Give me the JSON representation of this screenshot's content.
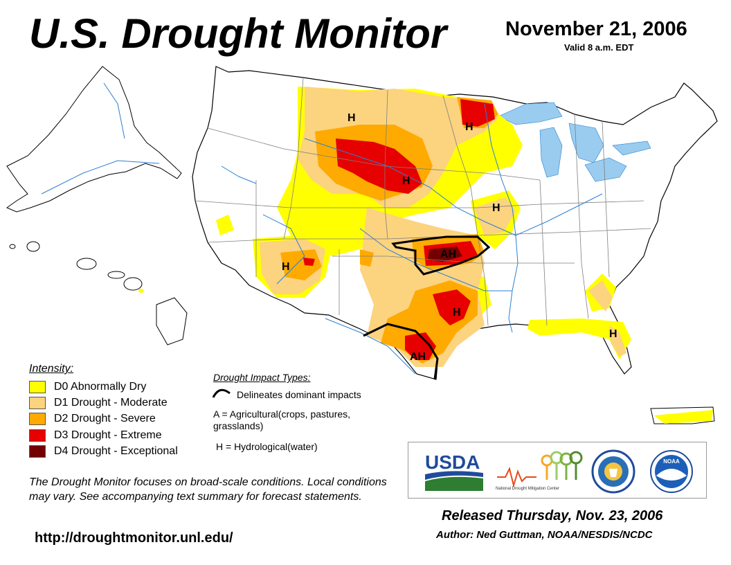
{
  "header": {
    "title": "U.S. Drought Monitor",
    "date": "November 21, 2006",
    "valid": "Valid 8 a.m. EDT"
  },
  "legend": {
    "title": "Intensity:",
    "items": [
      {
        "label": "D0 Abnormally Dry",
        "color": "#ffff00"
      },
      {
        "label": "D1 Drought - Moderate",
        "color": "#fcd37f"
      },
      {
        "label": "D2 Drought - Severe",
        "color": "#ffaa00"
      },
      {
        "label": "D3 Drought - Extreme",
        "color": "#e60000"
      },
      {
        "label": "D4 Drought - Exceptional",
        "color": "#730000"
      }
    ]
  },
  "impacts": {
    "title": "Drought Impact Types:",
    "delineates": "Delineates dominant impacts",
    "agricultural": "A = Agricultural(crops, pastures, grasslands)",
    "hydrological": "H = Hydrological(water)"
  },
  "map_labels": {
    "h": "H",
    "ah": "AH"
  },
  "disclaimer": "The Drought Monitor focuses on broad-scale conditions. Local conditions may vary. See accompanying text summary for forecast statements.",
  "url": "http://droughtmonitor.unl.edu/",
  "logos": {
    "usda": "USDA",
    "ndmc": "National Drought Mitigation Center",
    "commerce_seal": "Department of Commerce",
    "noaa": "NOAA"
  },
  "footer": {
    "released": "Released Thursday, Nov. 23, 2006",
    "author": "Author: Ned Guttman, NOAA/NESDIS/NCDC"
  },
  "colors": {
    "water": "#99ccee",
    "river": "#2a7fd4",
    "boundary": "#7f7f7f",
    "impact_line": "#000000"
  }
}
